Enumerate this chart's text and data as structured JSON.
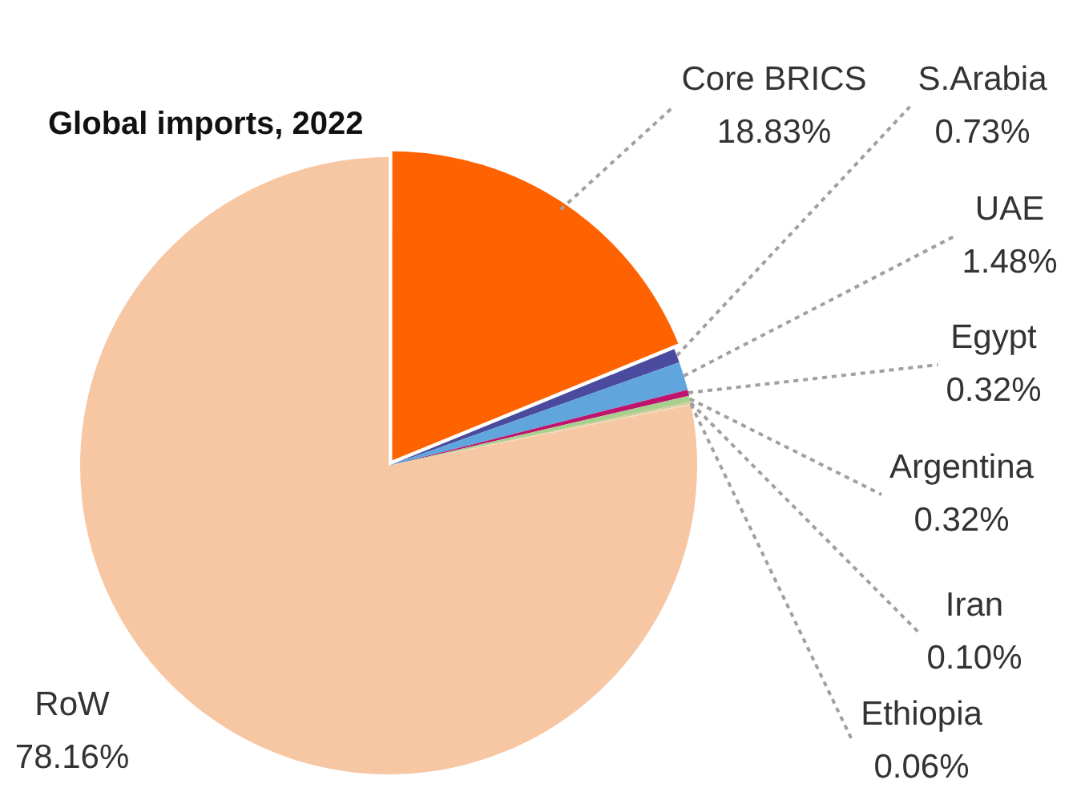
{
  "chart_data": {
    "type": "pie",
    "title": "Global imports, 2022",
    "categories": [
      "Core BRICS",
      "S.Arabia",
      "UAE",
      "Egypt",
      "Argentina",
      "Iran",
      "Ethiopia",
      "RoW"
    ],
    "values": [
      18.83,
      0.73,
      1.48,
      0.32,
      0.32,
      0.1,
      0.06,
      78.16
    ],
    "value_labels": [
      "18.83%",
      "0.73%",
      "1.48%",
      "0.32%",
      "0.32%",
      "0.10%",
      "0.06%",
      "78.16%"
    ],
    "colors": [
      "#ff6200",
      "#4a4a9e",
      "#60a6dc",
      "#c0136e",
      "#a8d08d",
      "#d9c8a0",
      "#e8e0b0",
      "#f7c6a3"
    ]
  }
}
